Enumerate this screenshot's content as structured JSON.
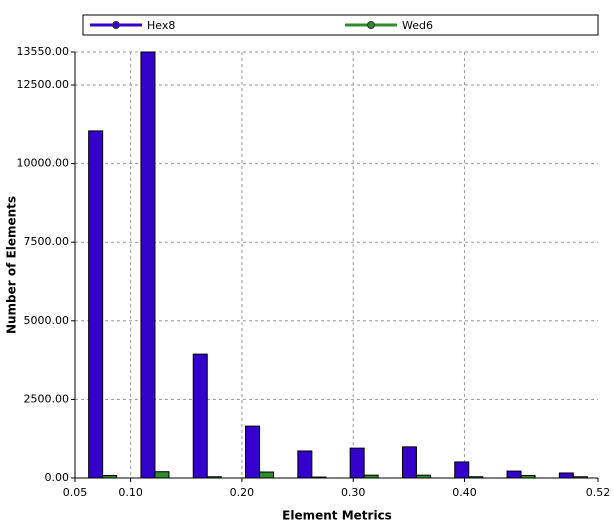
{
  "chart_data": {
    "type": "histogram",
    "xlabel": "Element Metrics",
    "ylabel": "Number of Elements",
    "bins": [
      0.05,
      0.097,
      0.144,
      0.191,
      0.238,
      0.285,
      0.332,
      0.379,
      0.426,
      0.473,
      0.52
    ],
    "series": [
      {
        "name": "Hex8",
        "color": "#3300cc",
        "values": [
          11040,
          13550,
          3940,
          1650,
          860,
          950,
          990,
          510,
          220,
          160
        ]
      },
      {
        "name": "Wed6",
        "color": "#2e8b2e",
        "values": [
          80,
          200,
          40,
          190,
          30,
          90,
          90,
          40,
          80,
          40
        ]
      }
    ],
    "xlim": [
      0.05,
      0.52
    ],
    "xticks": [
      0.05,
      {
        "value": 0.1,
        "label": "0.10"
      },
      {
        "value": 0.2,
        "label": "0.20"
      },
      {
        "value": 0.3,
        "label": "0.30"
      },
      {
        "value": 0.4,
        "label": "0.40"
      },
      0.52
    ],
    "ylim": [
      0,
      13550
    ],
    "yticks": [
      {
        "value": 0,
        "label": "0.00"
      },
      {
        "value": 2500,
        "label": "2500.00"
      },
      {
        "value": 5000,
        "label": "5000.00"
      },
      {
        "value": 7500,
        "label": "7500.00"
      },
      {
        "value": 10000,
        "label": "10000.00"
      },
      {
        "value": 12500,
        "label": "12500.00"
      },
      {
        "value": 13550,
        "label": "13550.00"
      }
    ],
    "grid": true,
    "legend": "top"
  }
}
